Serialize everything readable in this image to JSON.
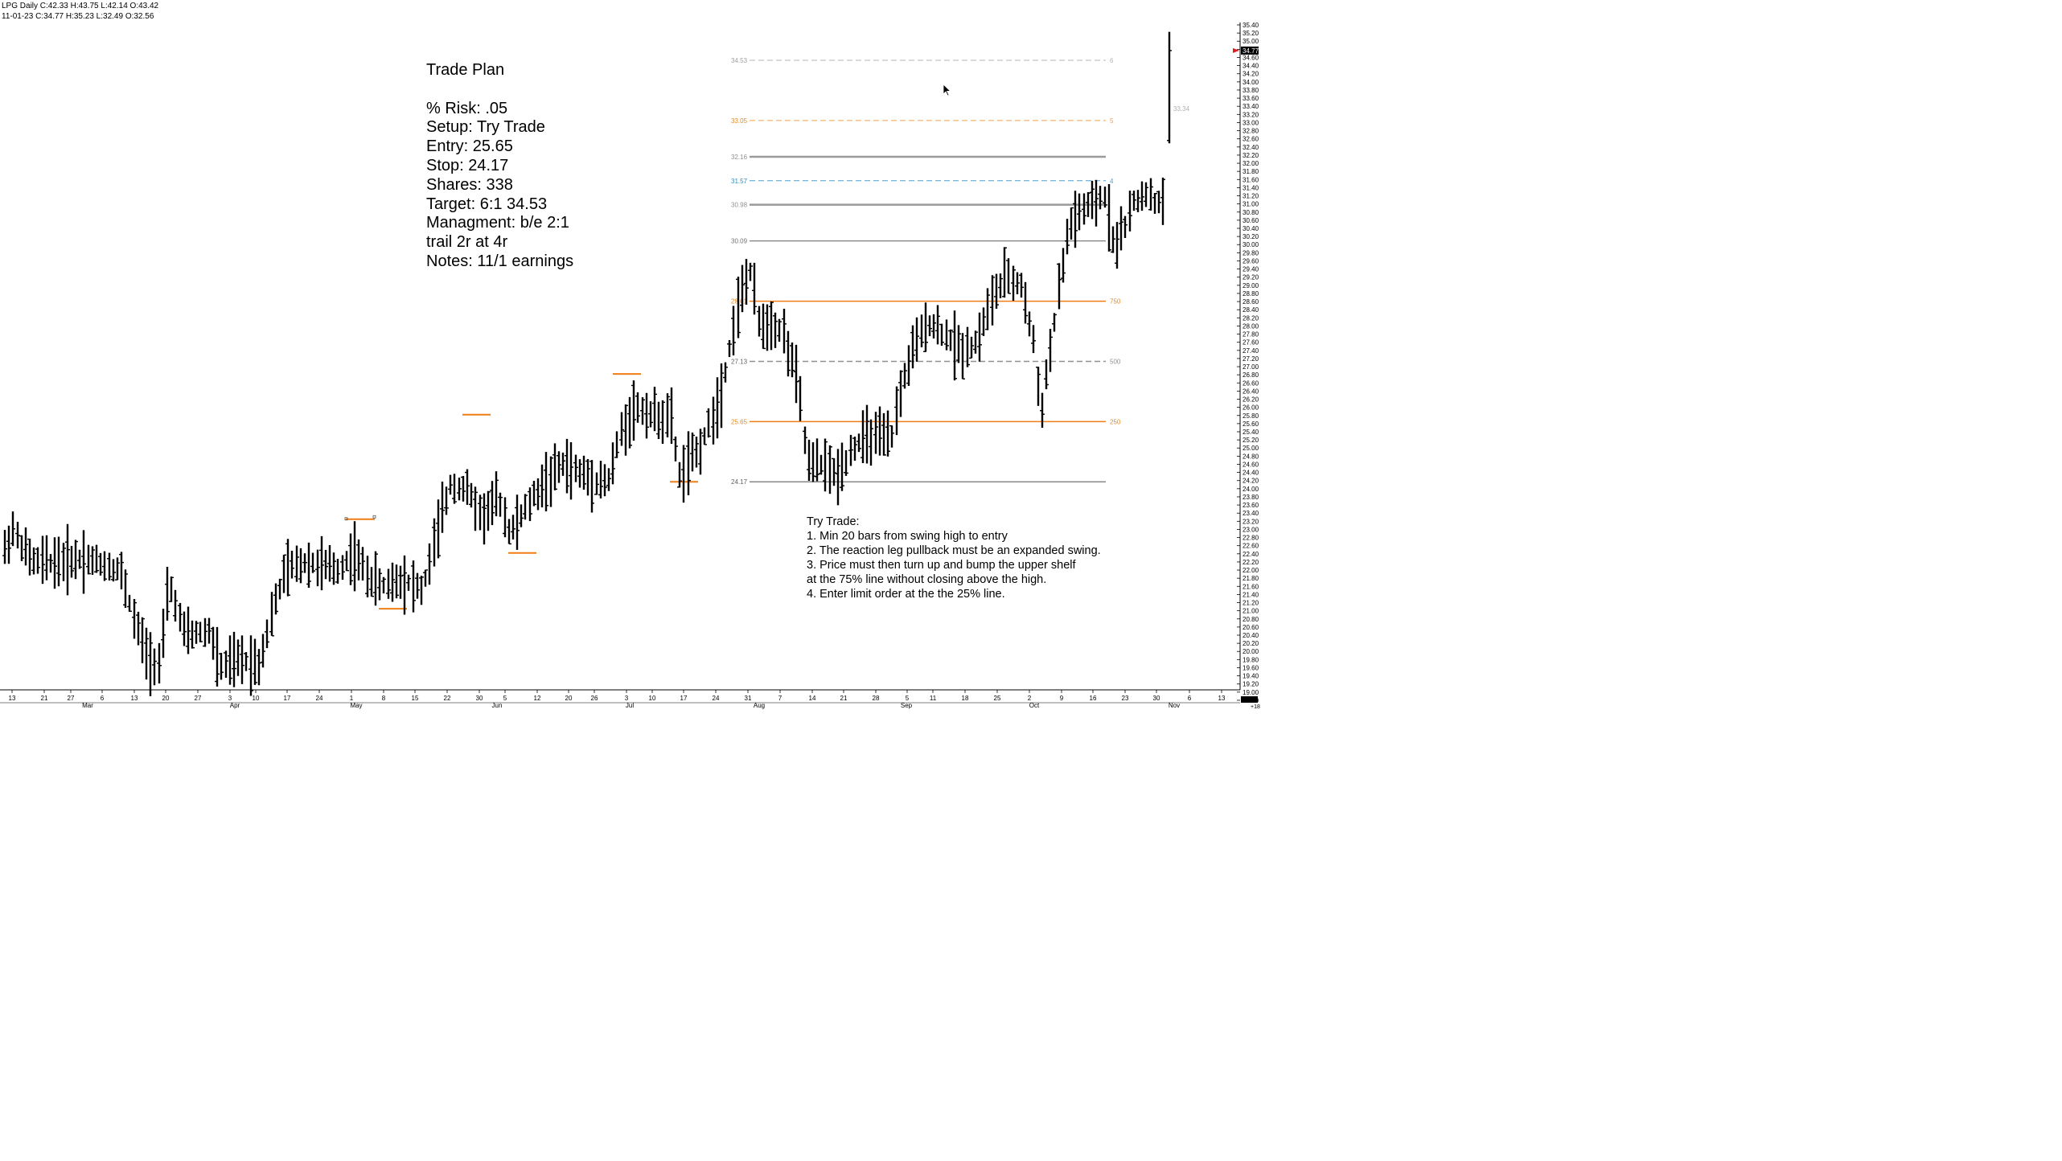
{
  "header": {
    "line1": "LPG Daily C:42.33 H:43.75 L:42.14 O:43.42",
    "line2": "11-01-23 C:34.77 H:35.23 L:32.49 O:32.56"
  },
  "trade_plan": {
    "lines": [
      "Trade Plan",
      "",
      "% Risk: .05",
      "Setup: Try Trade",
      "Entry: 25.65",
      "Stop: 24.17",
      "Shares: 338",
      "Target: 6:1 34.53",
      "Managment: b/e 2:1",
      "trail 2r at 4r",
      "Notes: 11/1 earnings"
    ]
  },
  "try_trade": {
    "lines": [
      "Try Trade:",
      "1. Min 20 bars from swing high to entry",
      "2. The reaction leg pullback must be an expanded swing.",
      "3. Price must then turn up and bump the upper shelf",
      "at the 75% line without closing above the high.",
      "4. Enter limit order at the the 25% line."
    ]
  },
  "chart_data": {
    "type": "ohlc",
    "symbol": "LPG",
    "timeframe": "Daily",
    "ylim": [
      18.6,
      35.4
    ],
    "y_ticks": [
      "35.40",
      "35.20",
      "35.00",
      "34.80",
      "34.60",
      "34.40",
      "34.20",
      "34.00",
      "33.80",
      "33.60",
      "33.40",
      "33.20",
      "33.00",
      "32.80",
      "32.60",
      "32.40",
      "32.20",
      "32.00",
      "31.80",
      "31.60",
      "31.40",
      "31.20",
      "31.00",
      "30.80",
      "30.60",
      "30.40",
      "30.20",
      "30.00",
      "29.80",
      "29.60",
      "29.40",
      "29.20",
      "29.00",
      "28.80",
      "28.60",
      "28.40",
      "28.20",
      "28.00",
      "27.80",
      "27.60",
      "27.40",
      "27.20",
      "27.00",
      "26.80",
      "26.60",
      "26.40",
      "26.20",
      "26.00",
      "25.80",
      "25.60",
      "25.40",
      "25.20",
      "25.00",
      "24.80",
      "24.60",
      "24.40",
      "24.20",
      "24.00",
      "23.80",
      "23.60",
      "23.40",
      "23.20",
      "23.00",
      "22.80",
      "22.60",
      "22.40",
      "22.20",
      "22.00",
      "21.80",
      "21.60",
      "21.40",
      "21.20",
      "21.00",
      "20.80",
      "20.60",
      "20.40",
      "20.20",
      "20.00",
      "19.80",
      "19.60",
      "19.40",
      "19.20",
      "19.00",
      "18.80"
    ],
    "last_price": "34.77",
    "last_price_color": "#e01b1b",
    "x_day_labels": [
      "13",
      "21",
      "27",
      "6",
      "13",
      "20",
      "27",
      "3",
      "10",
      "17",
      "24",
      "1",
      "8",
      "15",
      "22",
      "30",
      "5",
      "12",
      "20",
      "26",
      "3",
      "10",
      "17",
      "24",
      "31",
      "7",
      "14",
      "21",
      "28",
      "5",
      "11",
      "18",
      "25",
      "2",
      "9",
      "16",
      "23",
      "30",
      "6",
      "13"
    ],
    "x_month_labels": [
      "Mar",
      "Apr",
      "May",
      "Jun",
      "Jul",
      "Aug",
      "Sep",
      "Oct",
      "Nov"
    ],
    "fib_levels": [
      {
        "price": 34.53,
        "label": "34.53",
        "right_label": "6",
        "color": "#b4b4b4",
        "style": "dashed",
        "width": 1
      },
      {
        "price": 33.05,
        "label": "33.05",
        "right_label": "5",
        "color": "#f0a050",
        "style": "dashed",
        "width": 1
      },
      {
        "price": 32.16,
        "label": "32.16",
        "right_label": "",
        "color": "#9a9a9a",
        "style": "solid",
        "width": 2.5
      },
      {
        "price": 31.57,
        "label": "31.57",
        "right_label": "4",
        "color": "#4b9fd1",
        "style": "dashed",
        "width": 1
      },
      {
        "price": 30.98,
        "label": "30.98",
        "right_label": "",
        "color": "#9a9a9a",
        "style": "solid",
        "width": 2.5
      },
      {
        "price": 30.09,
        "label": "30.09",
        "right_label": "",
        "color": "#707070",
        "style": "solid",
        "width": 1.2
      },
      {
        "price": 28.61,
        "label": "28.61",
        "right_label": "750",
        "color": "#f07d14",
        "style": "solid",
        "width": 1.5
      },
      {
        "price": 27.13,
        "label": "27.13",
        "right_label": "500",
        "color": "#909090",
        "style": "dashed",
        "width": 1.5
      },
      {
        "price": 25.65,
        "label": "25.65",
        "right_label": "250",
        "color": "#f07d14",
        "style": "solid",
        "width": 1.5
      },
      {
        "price": 24.17,
        "label": "24.17",
        "right_label": "",
        "color": "#707070",
        "style": "solid",
        "width": 1.2
      }
    ],
    "level_label_colors": {
      "34.53": "#a0a0a0",
      "33.05": "#e08a2a",
      "32.16": "#909090",
      "31.57": "#2f8fc4",
      "30.98": "#909090",
      "30.09": "#707070",
      "28.61": "#e08a2a",
      "27.13": "#606060",
      "25.65": "#e08a2a",
      "24.17": "#606060"
    },
    "current_bar_annotation": "33.34",
    "swing_markers": [
      23.25,
      21.05,
      25.82,
      22.42,
      26.82,
      24.17
    ],
    "axis_footer": "+18"
  }
}
